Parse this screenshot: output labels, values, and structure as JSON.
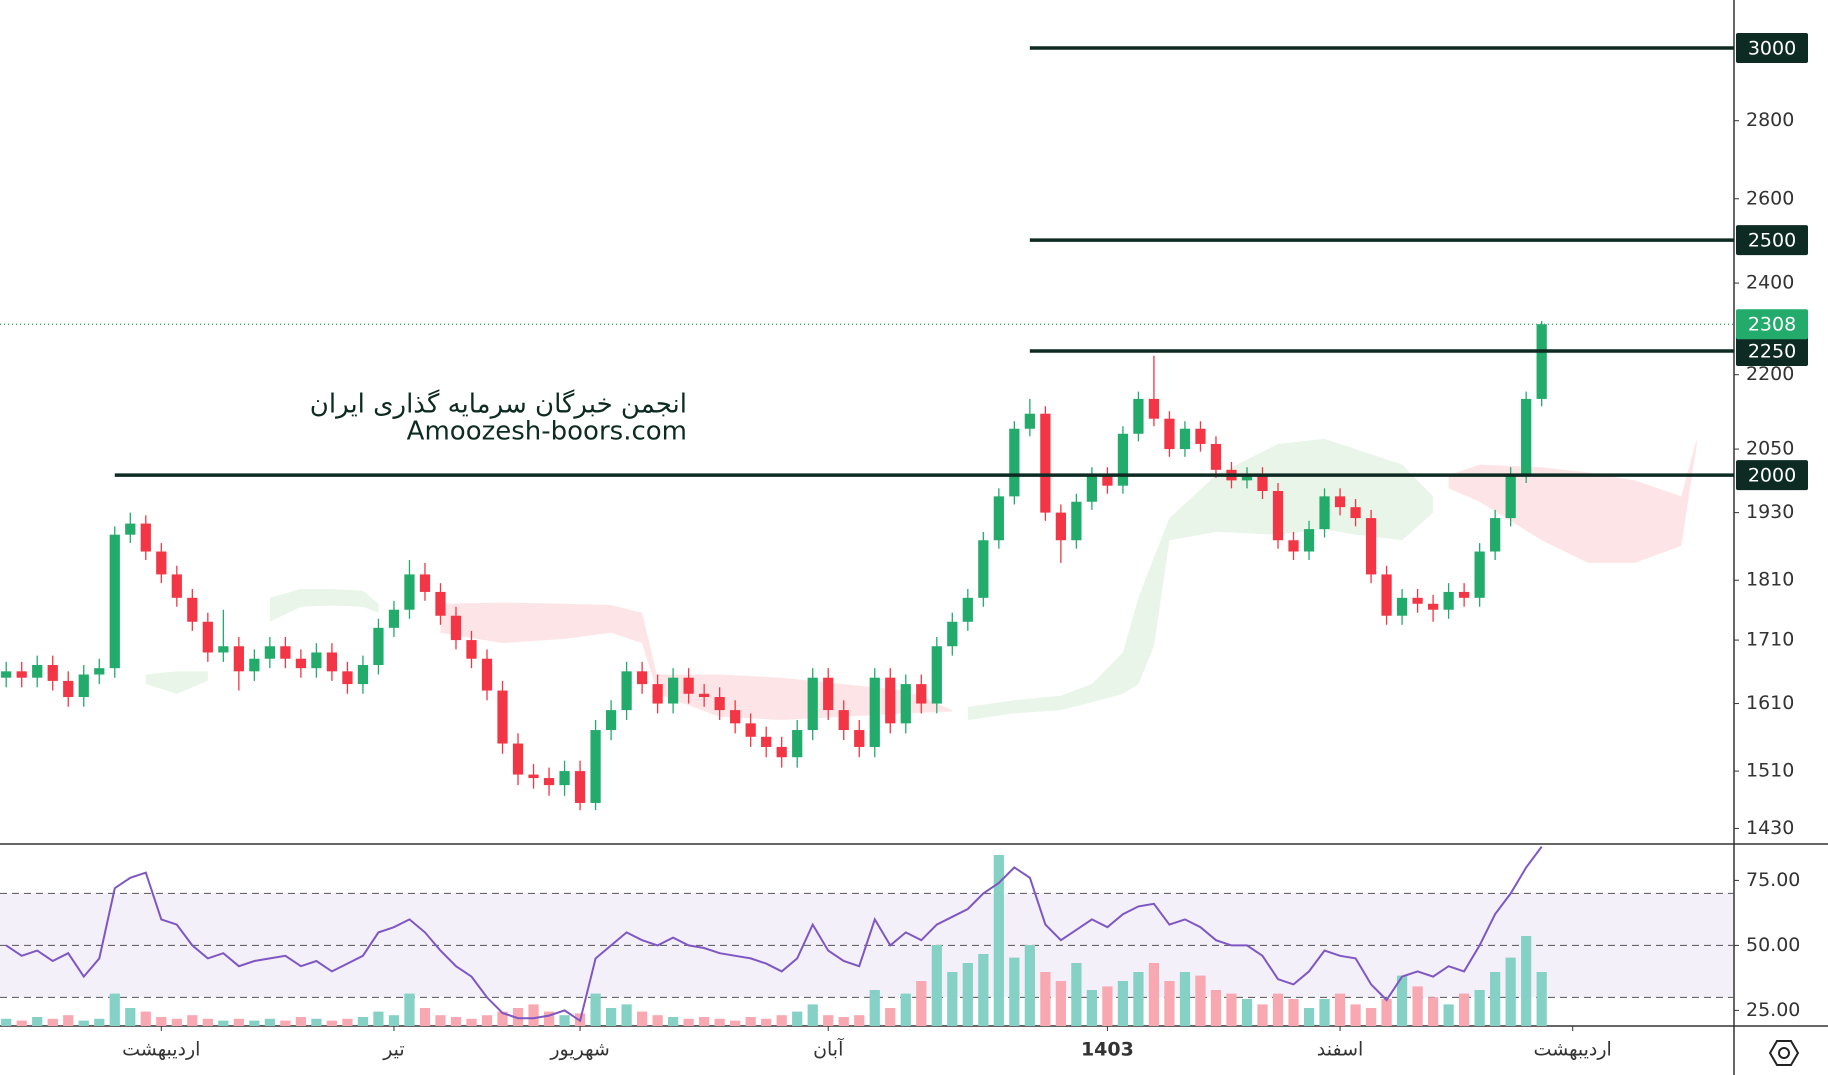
{
  "chart_data": {
    "type": "candlestick",
    "yscale": "log",
    "ylim": [
      1409,
      3140
    ],
    "xlim": [
      -0.4,
      111.4
    ],
    "yticks": [
      2800,
      2600,
      2400,
      2200,
      2050,
      1930,
      1810,
      1710,
      1610,
      1510,
      1430
    ],
    "xticks": [
      {
        "value": 10,
        "label": "اردیبهشت"
      },
      {
        "value": 25,
        "label": "تیر"
      },
      {
        "value": 37,
        "label": "شهریور"
      },
      {
        "value": 53,
        "label": "آبان"
      },
      {
        "value": 71,
        "label": "1403"
      },
      {
        "value": 86,
        "label": "اسفند"
      },
      {
        "value": 101,
        "label": "اردیبهشت"
      }
    ],
    "open": [
      1650,
      1660,
      1650,
      1670,
      1645,
      1620,
      1655,
      1665,
      1890,
      1910,
      1860,
      1820,
      1780,
      1740,
      1690,
      1700,
      1660,
      1680,
      1700,
      1680,
      1665,
      1690,
      1660,
      1640,
      1670,
      1730,
      1760,
      1820,
      1790,
      1750,
      1710,
      1680,
      1630,
      1550,
      1505,
      1500,
      1490,
      1510,
      1465,
      1570,
      1600,
      1660,
      1640,
      1610,
      1650,
      1625,
      1620,
      1600,
      1580,
      1560,
      1545,
      1530,
      1570,
      1650,
      1600,
      1570,
      1545,
      1650,
      1580,
      1640,
      1610,
      1700,
      1740,
      1780,
      1880,
      1960,
      2090,
      2120,
      1930,
      1880,
      1950,
      2000,
      1980,
      2080,
      2150,
      2110,
      2050,
      2090,
      2060,
      2010,
      1990,
      2000,
      1970,
      1880,
      1860,
      1900,
      1960,
      1940,
      1920,
      1820,
      1750,
      1780,
      1770,
      1760,
      1790,
      1780,
      1860,
      1920,
      2000,
      2150
    ],
    "high": [
      1675,
      1675,
      1685,
      1685,
      1660,
      1670,
      1680,
      1905,
      1930,
      1925,
      1875,
      1835,
      1795,
      1755,
      1760,
      1715,
      1695,
      1715,
      1715,
      1695,
      1705,
      1705,
      1675,
      1685,
      1745,
      1775,
      1845,
      1840,
      1805,
      1765,
      1725,
      1695,
      1645,
      1565,
      1520,
      1515,
      1525,
      1525,
      1585,
      1615,
      1675,
      1675,
      1655,
      1665,
      1665,
      1640,
      1635,
      1615,
      1595,
      1575,
      1560,
      1585,
      1665,
      1665,
      1615,
      1585,
      1665,
      1665,
      1655,
      1655,
      1715,
      1755,
      1795,
      1895,
      1975,
      2105,
      2150,
      2135,
      1945,
      1965,
      2015,
      2015,
      2095,
      2165,
      2240,
      2125,
      2105,
      2105,
      2075,
      2025,
      2015,
      2015,
      1985,
      1895,
      1915,
      1975,
      1975,
      1955,
      1935,
      1835,
      1795,
      1795,
      1785,
      1805,
      1805,
      1875,
      1935,
      2015,
      2165,
      2315
    ],
    "low": [
      1635,
      1635,
      1635,
      1630,
      1605,
      1605,
      1640,
      1650,
      1875,
      1845,
      1805,
      1765,
      1725,
      1675,
      1675,
      1630,
      1645,
      1665,
      1665,
      1650,
      1650,
      1645,
      1625,
      1625,
      1655,
      1715,
      1745,
      1775,
      1735,
      1695,
      1665,
      1615,
      1535,
      1490,
      1485,
      1475,
      1475,
      1455,
      1455,
      1555,
      1585,
      1625,
      1595,
      1595,
      1610,
      1605,
      1585,
      1565,
      1545,
      1530,
      1515,
      1515,
      1555,
      1585,
      1555,
      1530,
      1530,
      1565,
      1565,
      1595,
      1595,
      1685,
      1725,
      1765,
      1865,
      1945,
      2075,
      1915,
      1840,
      1865,
      1935,
      1965,
      1965,
      2065,
      2095,
      2035,
      2035,
      2045,
      1995,
      1975,
      1975,
      1955,
      1865,
      1845,
      1845,
      1885,
      1925,
      1905,
      1805,
      1735,
      1735,
      1755,
      1740,
      1745,
      1765,
      1765,
      1845,
      1905,
      1985,
      2135
    ],
    "close": [
      1660,
      1650,
      1670,
      1645,
      1620,
      1655,
      1665,
      1890,
      1910,
      1860,
      1820,
      1780,
      1740,
      1690,
      1700,
      1660,
      1680,
      1700,
      1680,
      1665,
      1690,
      1660,
      1640,
      1670,
      1730,
      1760,
      1820,
      1790,
      1750,
      1710,
      1680,
      1630,
      1550,
      1505,
      1500,
      1490,
      1510,
      1465,
      1570,
      1600,
      1660,
      1640,
      1610,
      1650,
      1625,
      1620,
      1600,
      1580,
      1560,
      1545,
      1530,
      1570,
      1650,
      1600,
      1570,
      1545,
      1650,
      1580,
      1640,
      1610,
      1700,
      1740,
      1780,
      1880,
      1960,
      2090,
      2120,
      1930,
      1880,
      1950,
      2000,
      1980,
      2080,
      2150,
      2110,
      2050,
      2090,
      2060,
      2010,
      1990,
      2000,
      1970,
      1880,
      1860,
      1900,
      1960,
      1940,
      1920,
      1820,
      1750,
      1780,
      1770,
      1760,
      1790,
      1780,
      1860,
      1920,
      2000,
      2150,
      2308
    ],
    "up_color": "#22ab6b",
    "down_color": "#f23645",
    "last_color": "#22ab6b",
    "levels": [
      {
        "value": 3000,
        "start": 66
      },
      {
        "value": 2500,
        "start": 66
      },
      {
        "value": 2250,
        "start": 66
      },
      {
        "value": 2000,
        "start": 7
      }
    ],
    "level_color": "#0d2b22",
    "clouds": [
      {
        "color": "green",
        "x": [
          9,
          11,
          13
        ],
        "upper": [
          1655,
          1660,
          1660
        ],
        "lower": [
          1640,
          1625,
          1645
        ]
      },
      {
        "color": "green",
        "x": [
          17,
          19,
          21,
          23,
          24
        ],
        "upper": [
          1780,
          1795,
          1795,
          1792,
          1770
        ],
        "lower": [
          1740,
          1765,
          1767,
          1765,
          1755
        ]
      },
      {
        "color": "red",
        "x": [
          28,
          32,
          36,
          39,
          41,
          42
        ],
        "upper": [
          1770,
          1772,
          1770,
          1768,
          1755,
          1650
        ],
        "lower": [
          1722,
          1705,
          1712,
          1722,
          1705,
          1625
        ]
      },
      {
        "color": "red",
        "x": [
          42,
          46,
          50,
          54,
          58,
          61
        ],
        "upper": [
          1655,
          1655,
          1650,
          1640,
          1630,
          1600
        ],
        "lower": [
          1625,
          1590,
          1585,
          1590,
          1595,
          1598
        ]
      },
      {
        "color": "green",
        "x": [
          62,
          65,
          68,
          70,
          72,
          73,
          74,
          75,
          78,
          82,
          85,
          87,
          90,
          92
        ],
        "upper": [
          1605,
          1615,
          1622,
          1640,
          1690,
          1780,
          1850,
          1920,
          2000,
          2060,
          2070,
          2050,
          2020,
          1960
        ],
        "lower": [
          1585,
          1595,
          1600,
          1612,
          1625,
          1640,
          1700,
          1880,
          1895,
          1890,
          1900,
          1890,
          1880,
          1930
        ]
      },
      {
        "color": "red",
        "x": [
          93,
          95,
          99,
          102,
          105,
          108,
          109
        ],
        "upper": [
          2000,
          2020,
          2015,
          2005,
          1990,
          1960,
          2070
        ],
        "lower": [
          1975,
          1950,
          1880,
          1840,
          1840,
          1870,
          2060
        ]
      }
    ],
    "cloud_colors": {
      "green": "rgba(76,175,80,0.13)",
      "red": "rgba(242,54,69,0.13)"
    },
    "annotations": [
      "انجمن خبرگان سرمایه گذاری ایران",
      "Amoozesh-boors.com"
    ],
    "volume": {
      "values": [
        4,
        3,
        5,
        4,
        6,
        3,
        4,
        18,
        10,
        8,
        5,
        4,
        6,
        4,
        3,
        4,
        3,
        4,
        3,
        5,
        4,
        3,
        4,
        5,
        8,
        6,
        18,
        10,
        6,
        5,
        4,
        6,
        8,
        10,
        12,
        8,
        6,
        7,
        18,
        10,
        12,
        8,
        6,
        5,
        4,
        5,
        4,
        3,
        5,
        4,
        6,
        8,
        12,
        6,
        5,
        6,
        20,
        10,
        18,
        25,
        45,
        30,
        35,
        40,
        95,
        38,
        45,
        30,
        25,
        35,
        20,
        22,
        25,
        30,
        35,
        25,
        30,
        28,
        20,
        18,
        15,
        12,
        18,
        15,
        10,
        15,
        18,
        12,
        10,
        15,
        28,
        22,
        16,
        12,
        18,
        20,
        30,
        38,
        50,
        30
      ],
      "ylim": [
        0,
        100
      ],
      "up_color": "#86d1c5",
      "down_color": "#f7a8b1"
    },
    "rsi": {
      "values": [
        50,
        46,
        48,
        44,
        47,
        38,
        45,
        72,
        76,
        78,
        60,
        58,
        50,
        45,
        47,
        42,
        44,
        45,
        46,
        42,
        44,
        40,
        43,
        46,
        55,
        57,
        60,
        55,
        48,
        42,
        38,
        30,
        24,
        22,
        22,
        23,
        25,
        21,
        45,
        50,
        55,
        52,
        50,
        53,
        50,
        49,
        47,
        46,
        45,
        43,
        40,
        45,
        58,
        48,
        44,
        42,
        60,
        50,
        55,
        52,
        58,
        61,
        64,
        70,
        74,
        80,
        76,
        58,
        52,
        56,
        60,
        57,
        62,
        65,
        66,
        58,
        60,
        57,
        52,
        50,
        50,
        46,
        37,
        35,
        40,
        48,
        46,
        45,
        35,
        29,
        38,
        40,
        38,
        42,
        40,
        50,
        62,
        70,
        80,
        88
      ],
      "ylim": [
        19,
        89
      ],
      "yticks": [
        {
          "value": 75,
          "label": "75.00"
        },
        {
          "value": 50,
          "label": "50.00"
        },
        {
          "value": 25,
          "label": "25.00"
        }
      ],
      "bands": [
        30,
        50,
        70
      ],
      "color": "#7e57c2",
      "band_fill": "rgba(126,87,194,0.09)"
    }
  }
}
